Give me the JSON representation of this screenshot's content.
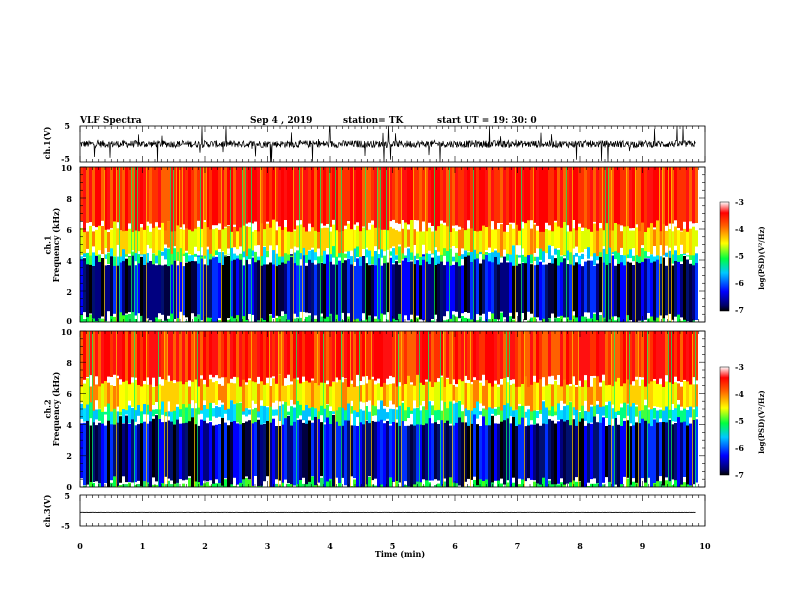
{
  "header": {
    "title": "VLF Spectra",
    "date": "Sep 4 , 2019",
    "station": "station= TK",
    "start": "start UT =  19: 30: 0"
  },
  "chart_data": [
    {
      "type": "line",
      "name": "waveform-ch1",
      "ylabel": "ch.1(V)",
      "yticks": [
        "5",
        "-5"
      ],
      "ylim": [
        -5,
        5
      ],
      "xlim": [
        0,
        10
      ],
      "baseline": 0,
      "noise_amplitude": 2,
      "data_end": 9.85
    },
    {
      "type": "heatmap",
      "name": "spectrogram-ch1",
      "ylabel": "ch.1\nFrequency (kHz)",
      "ylim": [
        0,
        10
      ],
      "yticks": [
        "0",
        "2",
        "4",
        "6",
        "8",
        "10"
      ],
      "xlim": [
        0,
        10
      ],
      "data_end": 9.85,
      "bands_khz": [
        [
          0,
          0.3,
          "green"
        ],
        [
          0.3,
          4.0,
          "blue/black"
        ],
        [
          4.0,
          4.6,
          "cyan/green"
        ],
        [
          4.6,
          6.2,
          "yellow"
        ],
        [
          6.2,
          10,
          "red"
        ]
      ],
      "colorbar": {
        "label": "log(PSD)(V²/Hz)",
        "min": -7,
        "max": -3,
        "ticks": [
          "-3",
          "-4",
          "-5",
          "-6",
          "-7"
        ]
      }
    },
    {
      "type": "heatmap",
      "name": "spectrogram-ch2",
      "ylabel": "ch.2\nFrequency (kHz)",
      "ylim": [
        0,
        10
      ],
      "yticks": [
        "0",
        "2",
        "4",
        "6",
        "8",
        "10"
      ],
      "xlim": [
        0,
        10
      ],
      "data_end": 9.85,
      "bands_khz": [
        [
          0,
          0.3,
          "green"
        ],
        [
          0.3,
          4.3,
          "blue/black"
        ],
        [
          4.3,
          5.2,
          "cyan/green"
        ],
        [
          5.2,
          6.8,
          "yellow"
        ],
        [
          6.8,
          10,
          "red"
        ]
      ],
      "colorbar": {
        "label": "log(PSD)(V²/Hz)",
        "min": -7,
        "max": -3,
        "ticks": [
          "-3",
          "-4",
          "-5",
          "-6",
          "-7"
        ]
      }
    },
    {
      "type": "line",
      "name": "waveform-ch3",
      "ylabel": "ch.3(V)",
      "yticks": [
        "5",
        "-5"
      ],
      "ylim": [
        -5,
        5
      ],
      "xlim": [
        0,
        10
      ],
      "baseline": -0.6,
      "noise_amplitude": 0.05,
      "data_end": 9.85
    }
  ],
  "x_axis": {
    "label": "Time (min)",
    "ticks": [
      "0",
      "1",
      "2",
      "3",
      "4",
      "5",
      "6",
      "7",
      "8",
      "9",
      "10"
    ],
    "range": [
      0,
      10
    ]
  }
}
